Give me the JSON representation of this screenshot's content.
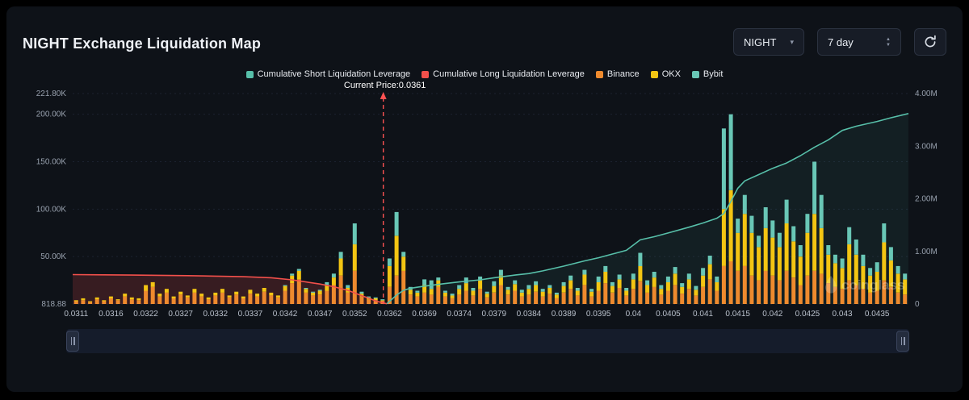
{
  "header": {
    "title": "NIGHT Exchange Liquidation Map"
  },
  "controls": {
    "symbol": {
      "value": "NIGHT"
    },
    "range": {
      "value": "7 day"
    },
    "refresh": {
      "name": "refresh"
    }
  },
  "legend": [
    {
      "label": "Cumulative Short Liquidation Leverage",
      "color": "#57bfa9"
    },
    {
      "label": "Cumulative Long Liquidation Leverage",
      "color": "#f2504b"
    },
    {
      "label": "Binance",
      "color": "#ee8a2e"
    },
    {
      "label": "OKX",
      "color": "#f3c513"
    },
    {
      "label": "Bybit",
      "color": "#69c7b6"
    }
  ],
  "annotation": {
    "current_price_label": "Current Price:0.0361",
    "current_price": 0.0361,
    "color": "#ff5252"
  },
  "watermark": {
    "text": "coinglass"
  },
  "chart_data": {
    "type": "bar",
    "subtype": "stacked-bars-with-cumulative-lines",
    "title": "NIGHT Exchange Liquidation Map",
    "grid": true,
    "legend_position": "top-center",
    "left_axis": {
      "unit": "K",
      "max": 221.8,
      "ticks": [
        {
          "v": 0,
          "label": "818.88"
        },
        {
          "v": 50,
          "label": "50.00K"
        },
        {
          "v": 100,
          "label": "100.00K"
        },
        {
          "v": 150,
          "label": "150.00K"
        },
        {
          "v": 200,
          "label": "200.00K"
        },
        {
          "v": 221.8,
          "label": "221.80K"
        }
      ]
    },
    "right_axis": {
      "unit": "M",
      "max": 4,
      "ticks": [
        {
          "v": 0,
          "label": "0"
        },
        {
          "v": 1,
          "label": "1.00M"
        },
        {
          "v": 2,
          "label": "2.00M"
        },
        {
          "v": 3,
          "label": "3.00M"
        },
        {
          "v": 4,
          "label": "4.00M"
        }
      ]
    },
    "x_ticks": [
      "0.0311",
      "0.0316",
      "0.0322",
      "0.0327",
      "0.0332",
      "0.0337",
      "0.0342",
      "0.0347",
      "0.0352",
      "0.0362",
      "0.0369",
      "0.0374",
      "0.0379",
      "0.0384",
      "0.0389",
      "0.0395",
      "0.04",
      "0.0405",
      "0.041",
      "0.0415",
      "0.042",
      "0.0425",
      "0.043",
      "0.0435"
    ],
    "tick_every": 5,
    "exchanges": [
      {
        "name": "Binance",
        "color": "#ee8a2e"
      },
      {
        "name": "OKX",
        "color": "#f3c513"
      },
      {
        "name": "Bybit",
        "color": "#69c7b6"
      }
    ],
    "bars_unit": "K (left axis), stacked [Binance, OKX, Bybit]",
    "bars": [
      [
        3,
        1,
        0
      ],
      [
        4,
        2,
        0
      ],
      [
        2,
        1,
        0
      ],
      [
        5,
        2,
        0
      ],
      [
        3,
        1,
        0
      ],
      [
        6,
        2,
        0
      ],
      [
        4,
        1,
        0
      ],
      [
        8,
        3,
        0
      ],
      [
        5,
        2,
        0
      ],
      [
        4,
        2,
        0
      ],
      [
        14,
        6,
        0
      ],
      [
        18,
        5,
        0
      ],
      [
        8,
        3,
        0
      ],
      [
        12,
        4,
        0
      ],
      [
        6,
        2,
        0
      ],
      [
        10,
        3,
        0
      ],
      [
        7,
        2,
        0
      ],
      [
        12,
        4,
        0
      ],
      [
        8,
        3,
        0
      ],
      [
        5,
        2,
        0
      ],
      [
        9,
        3,
        0
      ],
      [
        12,
        4,
        0
      ],
      [
        7,
        2,
        0
      ],
      [
        10,
        3,
        0
      ],
      [
        6,
        2,
        0
      ],
      [
        11,
        4,
        0
      ],
      [
        8,
        3,
        0
      ],
      [
        13,
        4,
        0
      ],
      [
        9,
        3,
        0
      ],
      [
        7,
        2,
        0
      ],
      [
        14,
        5,
        1
      ],
      [
        22,
        8,
        2
      ],
      [
        26,
        9,
        2
      ],
      [
        12,
        4,
        1
      ],
      [
        9,
        3,
        1
      ],
      [
        10,
        4,
        1
      ],
      [
        14,
        6,
        3
      ],
      [
        20,
        8,
        4
      ],
      [
        30,
        18,
        7
      ],
      [
        12,
        5,
        3
      ],
      [
        35,
        28,
        22
      ],
      [
        8,
        3,
        2
      ],
      [
        5,
        2,
        1
      ],
      [
        4,
        2,
        1
      ],
      [
        3,
        1,
        1
      ],
      [
        18,
        22,
        8
      ],
      [
        30,
        42,
        25
      ],
      [
        35,
        15,
        5
      ],
      [
        10,
        5,
        3
      ],
      [
        8,
        4,
        2
      ],
      [
        12,
        8,
        6
      ],
      [
        10,
        6,
        9
      ],
      [
        18,
        7,
        3
      ],
      [
        8,
        4,
        2
      ],
      [
        6,
        3,
        2
      ],
      [
        10,
        6,
        4
      ],
      [
        14,
        8,
        6
      ],
      [
        9,
        5,
        3
      ],
      [
        16,
        9,
        4
      ],
      [
        7,
        4,
        2
      ],
      [
        12,
        7,
        5
      ],
      [
        20,
        10,
        6
      ],
      [
        10,
        5,
        3
      ],
      [
        14,
        7,
        4
      ],
      [
        8,
        4,
        3
      ],
      [
        10,
        6,
        4
      ],
      [
        13,
        7,
        4
      ],
      [
        8,
        5,
        3
      ],
      [
        11,
        6,
        3
      ],
      [
        6,
        4,
        2
      ],
      [
        12,
        7,
        4
      ],
      [
        16,
        9,
        5
      ],
      [
        9,
        5,
        3
      ],
      [
        20,
        11,
        5
      ],
      [
        8,
        5,
        3
      ],
      [
        14,
        9,
        6
      ],
      [
        22,
        12,
        6
      ],
      [
        12,
        7,
        4
      ],
      [
        17,
        9,
        5
      ],
      [
        9,
        5,
        3
      ],
      [
        16,
        10,
        6
      ],
      [
        24,
        16,
        14
      ],
      [
        12,
        8,
        5
      ],
      [
        18,
        10,
        6
      ],
      [
        10,
        6,
        4
      ],
      [
        14,
        9,
        6
      ],
      [
        20,
        12,
        7
      ],
      [
        11,
        7,
        4
      ],
      [
        16,
        10,
        6
      ],
      [
        9,
        6,
        4
      ],
      [
        18,
        12,
        8
      ],
      [
        26,
        16,
        9
      ],
      [
        14,
        9,
        6
      ],
      [
        40,
        60,
        85
      ],
      [
        45,
        75,
        80
      ],
      [
        35,
        40,
        15
      ],
      [
        40,
        55,
        20
      ],
      [
        30,
        45,
        18
      ],
      [
        25,
        35,
        12
      ],
      [
        35,
        45,
        22
      ],
      [
        30,
        40,
        18
      ],
      [
        25,
        35,
        15
      ],
      [
        35,
        50,
        25
      ],
      [
        28,
        38,
        16
      ],
      [
        20,
        30,
        12
      ],
      [
        30,
        45,
        20
      ],
      [
        35,
        60,
        55
      ],
      [
        32,
        48,
        35
      ],
      [
        22,
        30,
        10
      ],
      [
        18,
        25,
        9
      ],
      [
        16,
        22,
        10
      ],
      [
        25,
        38,
        18
      ],
      [
        20,
        32,
        16
      ],
      [
        16,
        24,
        12
      ],
      [
        12,
        18,
        8
      ],
      [
        14,
        20,
        10
      ],
      [
        25,
        40,
        20
      ],
      [
        18,
        28,
        14
      ],
      [
        12,
        20,
        8
      ],
      [
        10,
        16,
        6
      ]
    ],
    "cumulative_long": {
      "name": "Cumulative Long Liquidation Leverage",
      "color": "#f2504b",
      "fill": "rgba(242,80,75,0.18)",
      "unit": "M (right axis)",
      "points": [
        [
          -0.5,
          0.56
        ],
        [
          4,
          0.555
        ],
        [
          8,
          0.55
        ],
        [
          12,
          0.545
        ],
        [
          16,
          0.54
        ],
        [
          20,
          0.53
        ],
        [
          24,
          0.52
        ],
        [
          28,
          0.5
        ],
        [
          31,
          0.46
        ],
        [
          33,
          0.42
        ],
        [
          35,
          0.38
        ],
        [
          37,
          0.33
        ],
        [
          39,
          0.26
        ],
        [
          40,
          0.21
        ],
        [
          41,
          0.16
        ],
        [
          42,
          0.11
        ],
        [
          43,
          0.06
        ],
        [
          44,
          0.025
        ],
        [
          44.6,
          0.005
        ]
      ]
    },
    "cumulative_short": {
      "name": "Cumulative Short Liquidation Leverage",
      "color": "#57bfa9",
      "fill": "rgba(87,191,169,0.08)",
      "unit": "M (right axis)",
      "points": [
        [
          44.6,
          0.005
        ],
        [
          45,
          0.05
        ],
        [
          46,
          0.17
        ],
        [
          47,
          0.26
        ],
        [
          48,
          0.3
        ],
        [
          50,
          0.34
        ],
        [
          53,
          0.39
        ],
        [
          55,
          0.42
        ],
        [
          58,
          0.46
        ],
        [
          60,
          0.5
        ],
        [
          63,
          0.55
        ],
        [
          65,
          0.58
        ],
        [
          67,
          0.63
        ],
        [
          70,
          0.72
        ],
        [
          73,
          0.82
        ],
        [
          75,
          0.88
        ],
        [
          77,
          0.95
        ],
        [
          79,
          1.02
        ],
        [
          81,
          1.22
        ],
        [
          83,
          1.28
        ],
        [
          85,
          1.35
        ],
        [
          88,
          1.46
        ],
        [
          90,
          1.54
        ],
        [
          92,
          1.63
        ],
        [
          93,
          1.72
        ],
        [
          94,
          1.95
        ],
        [
          95,
          2.2
        ],
        [
          96,
          2.34
        ],
        [
          98,
          2.46
        ],
        [
          100,
          2.58
        ],
        [
          102,
          2.68
        ],
        [
          104,
          2.82
        ],
        [
          106,
          2.98
        ],
        [
          108,
          3.12
        ],
        [
          110,
          3.3
        ],
        [
          112,
          3.38
        ],
        [
          115,
          3.47
        ],
        [
          117,
          3.54
        ],
        [
          119.5,
          3.62
        ]
      ]
    },
    "current_price_index": 44.1
  }
}
